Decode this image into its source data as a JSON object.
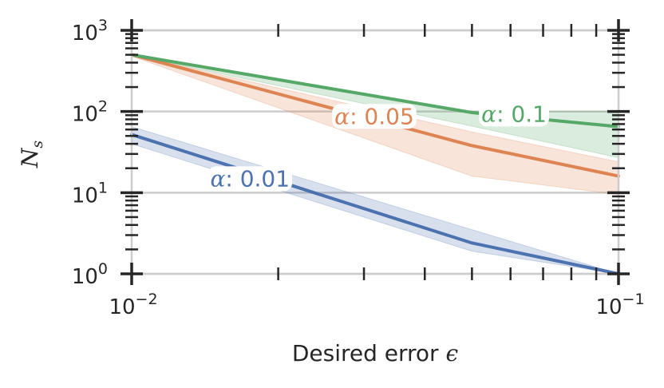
{
  "chart_data": {
    "type": "line",
    "x_scale": "log",
    "y_scale": "log",
    "xlim": [
      0.01,
      0.1
    ],
    "ylim": [
      1,
      1000
    ],
    "xlabel": {
      "text": "Desired error ",
      "symbol": "ϵ"
    },
    "ylabel": {
      "base": "N",
      "sub": "s"
    },
    "x_ticks": [
      {
        "value": 0.01,
        "base": "10",
        "exp": "-2"
      },
      {
        "value": 0.1,
        "base": "10",
        "exp": "-1"
      }
    ],
    "y_ticks": [
      {
        "value": 1,
        "base": "10",
        "exp": "0"
      },
      {
        "value": 10,
        "base": "10",
        "exp": "1"
      },
      {
        "value": 100,
        "base": "10",
        "exp": "2"
      },
      {
        "value": 1000,
        "base": "10",
        "exp": "3"
      }
    ],
    "grid": "horizontal",
    "series": [
      {
        "label_symbol": "α",
        "label_value": ": 0.01",
        "color": "#4c72b0",
        "x": [
          0.01,
          0.05,
          0.1
        ],
        "y": [
          52,
          2.4,
          1.0
        ],
        "band_upper": [
          65,
          3.5,
          1.0
        ],
        "band_lower": [
          40,
          1.9,
          1.0
        ],
        "label_at": [
          0.0175,
          15
        ]
      },
      {
        "label_symbol": "α",
        "label_value": ": 0.05",
        "color": "#dd8452",
        "x": [
          0.01,
          0.05,
          0.1
        ],
        "y": [
          500,
          38,
          16
        ],
        "band_upper": [
          500,
          56,
          24
        ],
        "band_lower": [
          480,
          16,
          9.5
        ],
        "label_at": [
          0.0315,
          88
        ]
      },
      {
        "label_symbol": "α",
        "label_value": ": 0.1",
        "color": "#55a868",
        "x": [
          0.01,
          0.05,
          0.1
        ],
        "y": [
          500,
          97,
          65
        ],
        "band_upper": [
          500,
          100,
          100
        ],
        "band_lower": [
          495,
          66,
          27
        ],
        "label_at": [
          0.061,
          94
        ]
      }
    ]
  }
}
